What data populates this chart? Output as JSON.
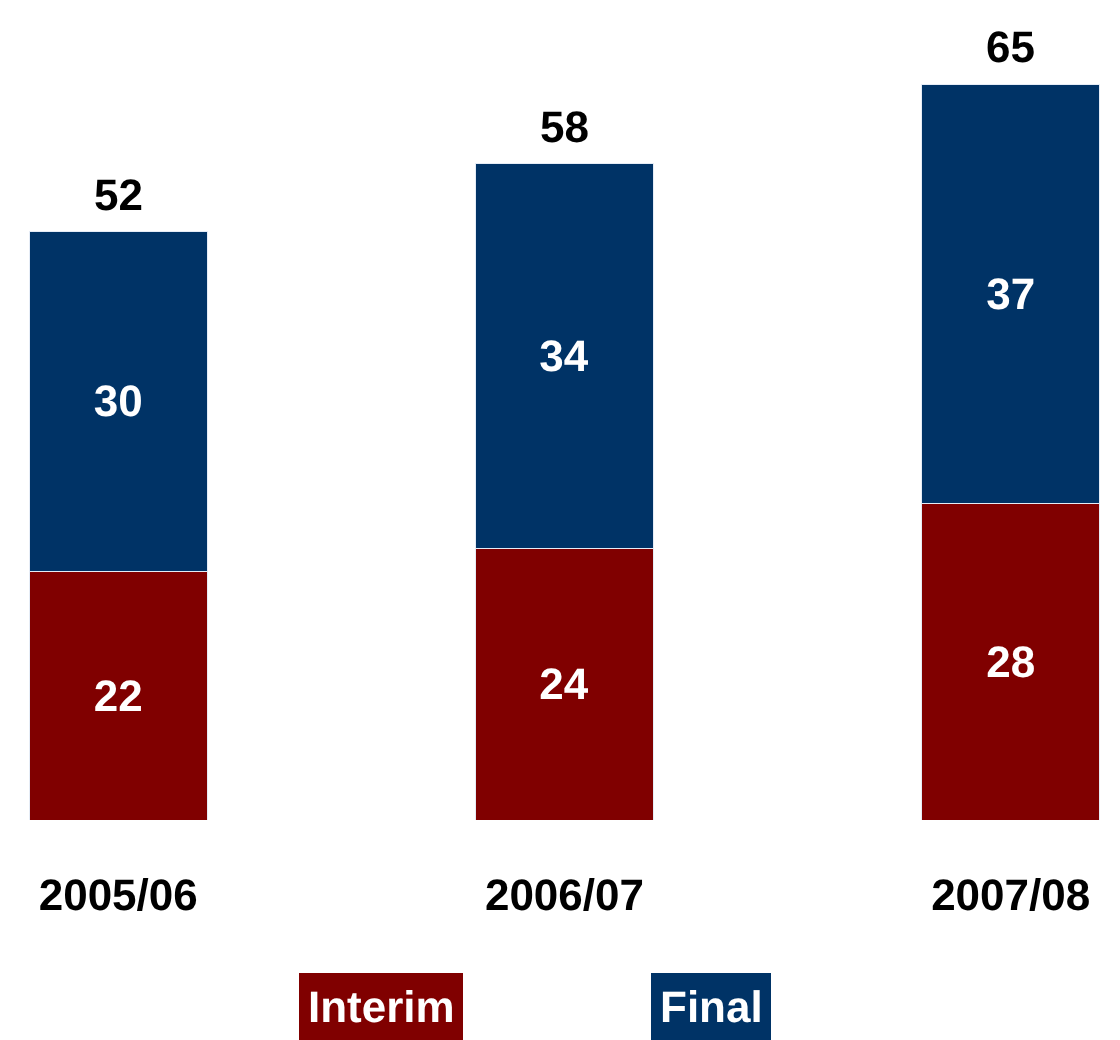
{
  "chart_data": {
    "type": "bar",
    "stacked": true,
    "categories": [
      "2005/06",
      "2006/07",
      "2007/08"
    ],
    "series": [
      {
        "name": "Interim",
        "color": "#800000",
        "values": [
          22,
          24,
          28
        ]
      },
      {
        "name": "Final",
        "color": "#003366",
        "values": [
          30,
          34,
          37
        ]
      }
    ],
    "totals": [
      "52",
      "58",
      "65"
    ],
    "data_labels": true,
    "legend": "bottom"
  }
}
